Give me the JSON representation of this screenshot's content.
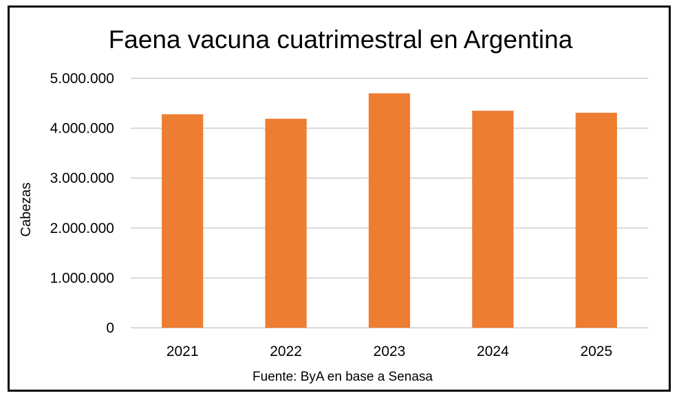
{
  "chart_data": {
    "type": "bar",
    "title": "Faena vacuna cuatrimestral en Argentina",
    "xlabel": "",
    "ylabel": "Cabezas",
    "source": "Fuente: ByA en base a Senasa",
    "categories": [
      "2021",
      "2022",
      "2023",
      "2024",
      "2025"
    ],
    "values": [
      4280000,
      4190000,
      4700000,
      4350000,
      4310000
    ],
    "ylim": [
      0,
      5000000
    ],
    "yticks": [
      0,
      1000000,
      2000000,
      3000000,
      4000000,
      5000000
    ],
    "ytick_labels": [
      "0",
      "1.000.000",
      "2.000.000",
      "3.000.000",
      "4.000.000",
      "5.000.000"
    ],
    "grid": true,
    "legend": "none",
    "colors": {
      "bar": "#ED7D31",
      "grid": "#D9D9D9",
      "frame": "#000000"
    }
  }
}
